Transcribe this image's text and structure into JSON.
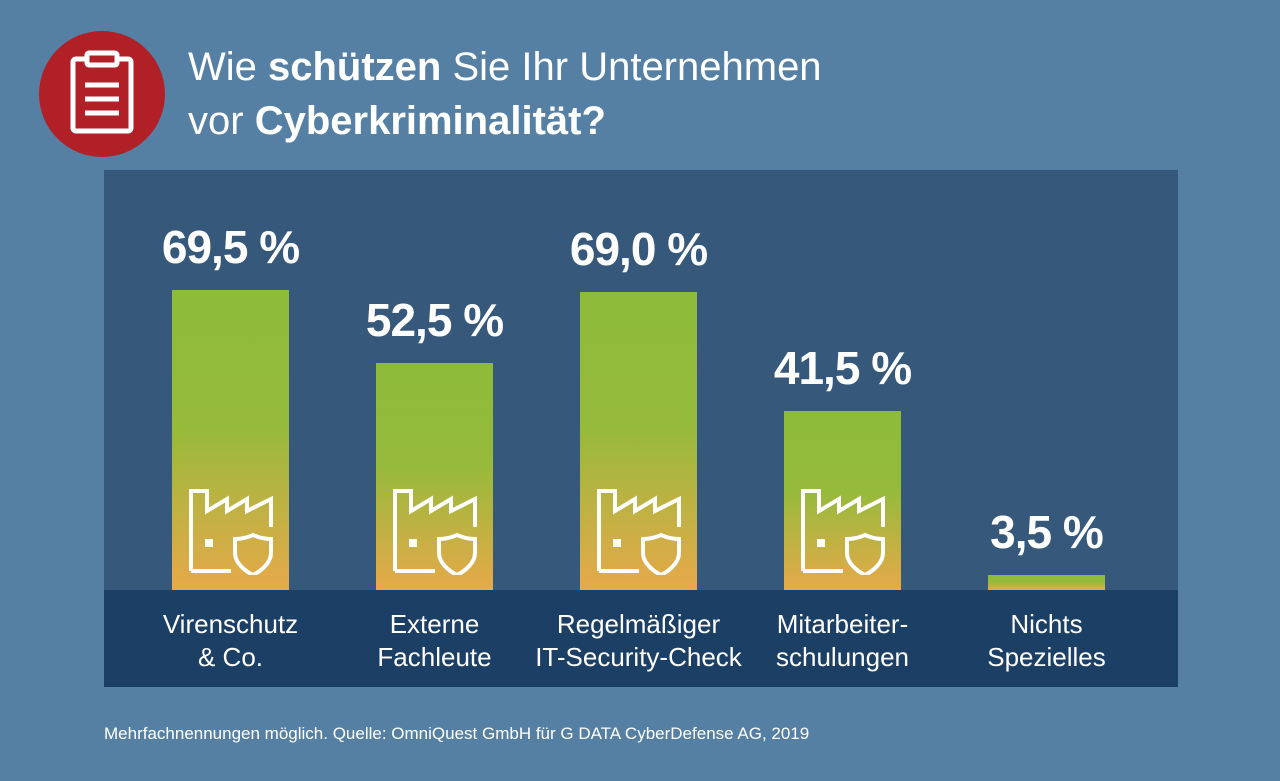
{
  "header": {
    "title_line1_pre": "Wie ",
    "title_line1_bold": "schützen",
    "title_line1_post": " Sie Ihr Unternehmen",
    "title_line2_pre": "vor ",
    "title_line2_bold": "Cyberkriminalität?",
    "badge_icon": "clipboard-icon"
  },
  "chart_data": {
    "type": "bar",
    "categories": [
      [
        "Virenschutz",
        "& Co."
      ],
      [
        "Externe",
        "Fachleute"
      ],
      [
        "Regelmäßiger",
        "IT-Security-Check"
      ],
      [
        "Mitarbeiter-",
        "schulungen"
      ],
      [
        "Nichts",
        "Spezielles"
      ]
    ],
    "values": [
      69.5,
      52.5,
      69.0,
      41.5,
      3.5
    ],
    "value_labels": [
      "69,5 %",
      "52,5 %",
      "69,0 %",
      "41,5 %",
      "3,5 %"
    ],
    "ylim": [
      0,
      80
    ],
    "grid": false,
    "bar_color_top": "#8dbb3a",
    "bar_color_bottom": "#e7a94a",
    "bar_icon": "factory-shield-icon"
  },
  "colors": {
    "background": "#5580a3",
    "panel": "#35587b",
    "label_band": "#1c3f66",
    "badge": "#b02026"
  },
  "footer": {
    "source": "Mehrfachnennungen möglich. Quelle: OmniQuest GmbH für G DATA CyberDefense AG, 2019"
  }
}
